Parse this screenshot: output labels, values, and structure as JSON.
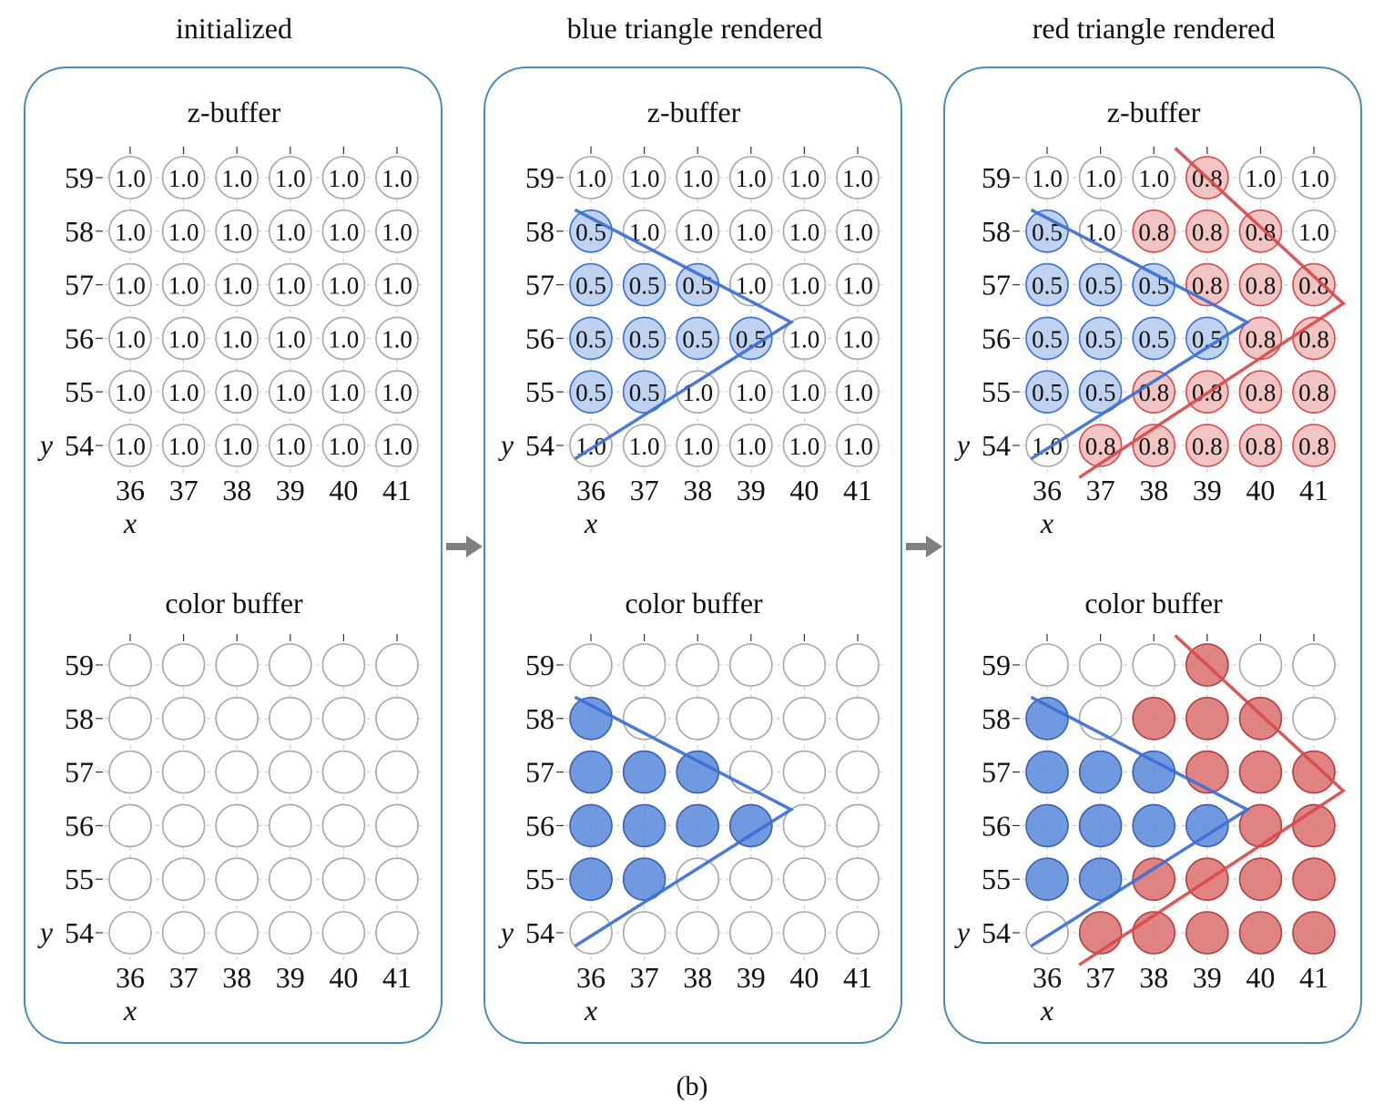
{
  "caption": "(b)",
  "x_axis": {
    "label": "x",
    "ticks": [
      "36",
      "37",
      "38",
      "39",
      "40",
      "41"
    ]
  },
  "y_axis": {
    "label": "y",
    "ticks": [
      "59",
      "58",
      "57",
      "56",
      "55",
      "54"
    ]
  },
  "colors": {
    "panel_border": "#4a8ab8",
    "cell_empty_stroke": "#a8a8a8",
    "blue_fill": "#6490dc",
    "blue_fill_light": "#bcd0ef",
    "blue_stroke": "#3a62b0",
    "blue_edge": "#3b6fd4",
    "red_fill": "#dc7878",
    "red_fill_light": "#f1c2c2",
    "red_stroke": "#b24040",
    "red_edge": "#d94a4a",
    "arrow": "#7f7f7f"
  },
  "panels": [
    {
      "title": "initialized",
      "zbuffer_title": "z-buffer",
      "color_title": "color buffer",
      "zbuffer": [
        [
          "1.0",
          "1.0",
          "1.0",
          "1.0",
          "1.0",
          "1.0"
        ],
        [
          "1.0",
          "1.0",
          "1.0",
          "1.0",
          "1.0",
          "1.0"
        ],
        [
          "1.0",
          "1.0",
          "1.0",
          "1.0",
          "1.0",
          "1.0"
        ],
        [
          "1.0",
          "1.0",
          "1.0",
          "1.0",
          "1.0",
          "1.0"
        ],
        [
          "1.0",
          "1.0",
          "1.0",
          "1.0",
          "1.0",
          "1.0"
        ],
        [
          "1.0",
          "1.0",
          "1.0",
          "1.0",
          "1.0",
          "1.0"
        ]
      ],
      "color": [
        [
          "",
          "",
          "",
          "",
          "",
          ""
        ],
        [
          "",
          "",
          "",
          "",
          "",
          ""
        ],
        [
          "",
          "",
          "",
          "",
          "",
          ""
        ],
        [
          "",
          "",
          "",
          "",
          "",
          ""
        ],
        [
          "",
          "",
          "",
          "",
          "",
          ""
        ],
        [
          "",
          "",
          "",
          "",
          "",
          ""
        ]
      ],
      "triangles": []
    },
    {
      "title": "blue triangle rendered",
      "zbuffer_title": "z-buffer",
      "color_title": "color buffer",
      "zbuffer": [
        [
          "1.0",
          "1.0",
          "1.0",
          "1.0",
          "1.0",
          "1.0"
        ],
        [
          "0.5",
          "1.0",
          "1.0",
          "1.0",
          "1.0",
          "1.0"
        ],
        [
          "0.5",
          "0.5",
          "0.5",
          "1.0",
          "1.0",
          "1.0"
        ],
        [
          "0.5",
          "0.5",
          "0.5",
          "0.5",
          "1.0",
          "1.0"
        ],
        [
          "0.5",
          "0.5",
          "1.0",
          "1.0",
          "1.0",
          "1.0"
        ],
        [
          "1.0",
          "1.0",
          "1.0",
          "1.0",
          "1.0",
          "1.0"
        ]
      ],
      "color": [
        [
          "",
          "",
          "",
          "",
          "",
          ""
        ],
        [
          "b",
          "",
          "",
          "",
          "",
          ""
        ],
        [
          "b",
          "b",
          "b",
          "",
          "",
          ""
        ],
        [
          "b",
          "b",
          "b",
          "b",
          "",
          ""
        ],
        [
          "b",
          "b",
          "",
          "",
          "",
          ""
        ],
        [
          "",
          "",
          "",
          "",
          "",
          ""
        ]
      ],
      "triangles": [
        {
          "color": "blue",
          "vertices": [
            [
              35.7,
              58.4
            ],
            [
              39.75,
              56.3
            ],
            [
              35.7,
              53.75
            ]
          ]
        }
      ]
    },
    {
      "title": "red triangle rendered",
      "zbuffer_title": "z-buffer",
      "color_title": "color buffer",
      "zbuffer": [
        [
          "1.0",
          "1.0",
          "1.0",
          "0.8",
          "1.0",
          "1.0"
        ],
        [
          "0.5",
          "1.0",
          "0.8",
          "0.8",
          "0.8",
          "1.0"
        ],
        [
          "0.5",
          "0.5",
          "0.5",
          "0.8",
          "0.8",
          "0.8"
        ],
        [
          "0.5",
          "0.5",
          "0.5",
          "0.5",
          "0.8",
          "0.8"
        ],
        [
          "0.5",
          "0.5",
          "0.8",
          "0.8",
          "0.8",
          "0.8"
        ],
        [
          "1.0",
          "0.8",
          "0.8",
          "0.8",
          "0.8",
          "0.8"
        ]
      ],
      "color": [
        [
          "",
          "",
          "",
          "r",
          "",
          ""
        ],
        [
          "b",
          "",
          "r",
          "r",
          "r",
          ""
        ],
        [
          "b",
          "b",
          "b",
          "r",
          "r",
          "r"
        ],
        [
          "b",
          "b",
          "b",
          "b",
          "r",
          "r"
        ],
        [
          "b",
          "b",
          "r",
          "r",
          "r",
          "r"
        ],
        [
          "",
          "r",
          "r",
          "r",
          "r",
          "r"
        ]
      ],
      "triangles": [
        {
          "color": "blue",
          "vertices": [
            [
              35.7,
              58.4
            ],
            [
              39.75,
              56.3
            ],
            [
              35.7,
              53.75
            ]
          ]
        },
        {
          "color": "red",
          "vertices": [
            [
              38.4,
              59.55
            ],
            [
              41.55,
              56.65
            ],
            [
              36.6,
              53.4
            ]
          ]
        }
      ]
    }
  ]
}
